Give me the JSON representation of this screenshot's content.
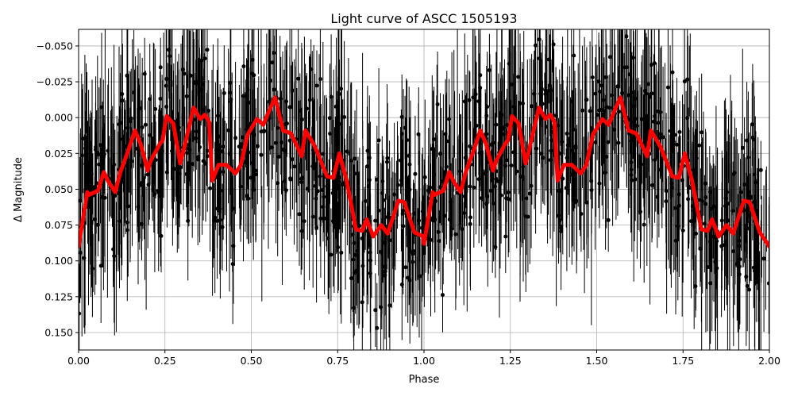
{
  "chart_data": {
    "type": "line",
    "title": "Light curve of ASCC 1505193",
    "xlabel": "Phase",
    "ylabel": "Δ Magnitude",
    "xlim": [
      0.0,
      2.0
    ],
    "ylim": [
      -0.0616,
      0.1622
    ],
    "y_inverted": true,
    "grid": true,
    "xticks": [
      "0.00",
      "0.25",
      "0.50",
      "0.75",
      "1.00",
      "1.25",
      "1.50",
      "1.75",
      "2.00"
    ],
    "yticks": [
      "−0.050",
      "−0.025",
      "0.000",
      "0.025",
      "0.050",
      "0.075",
      "0.100",
      "0.125",
      "0.150"
    ],
    "xtick_values": [
      0,
      0.25,
      0.5,
      0.75,
      1.0,
      1.25,
      1.5,
      1.75,
      2.0
    ],
    "ytick_values": [
      -0.05,
      -0.025,
      0,
      0.025,
      0.05,
      0.075,
      0.1,
      0.125,
      0.15
    ],
    "series": [
      {
        "kind": "errorbar-scatter",
        "color": "#000000",
        "note_visible": "dense black points with vertical error bars scattered around the fitted curve"
      },
      {
        "kind": "line",
        "color": "#ff0000",
        "x": [
          0.0,
          0.025,
          0.029,
          0.056,
          0.073,
          0.087,
          0.106,
          0.121,
          0.144,
          0.163,
          0.179,
          0.2,
          0.209,
          0.236,
          0.243,
          0.255,
          0.274,
          0.294,
          0.301,
          0.333,
          0.352,
          0.366,
          0.378,
          0.387,
          0.405,
          0.428,
          0.454,
          0.47,
          0.489,
          0.516,
          0.535,
          0.55,
          0.569,
          0.592,
          0.615,
          0.646,
          0.657,
          0.684,
          0.719,
          0.738,
          0.755,
          0.776,
          0.803,
          0.821,
          0.834,
          0.853,
          0.876,
          0.895,
          0.926,
          0.943,
          0.972,
          0.998,
          1.0,
          1.025,
          1.029,
          1.056,
          1.073,
          1.087,
          1.106,
          1.121,
          1.144,
          1.163,
          1.179,
          1.2,
          1.209,
          1.236,
          1.243,
          1.255,
          1.274,
          1.294,
          1.301,
          1.333,
          1.352,
          1.366,
          1.378,
          1.387,
          1.405,
          1.428,
          1.454,
          1.47,
          1.489,
          1.516,
          1.535,
          1.55,
          1.569,
          1.592,
          1.615,
          1.646,
          1.657,
          1.684,
          1.719,
          1.738,
          1.755,
          1.776,
          1.803,
          1.821,
          1.834,
          1.853,
          1.876,
          1.895,
          1.926,
          1.943,
          1.972,
          2.0
        ],
        "y": [
          0.09,
          0.052,
          0.054,
          0.051,
          0.038,
          0.045,
          0.052,
          0.038,
          0.023,
          0.009,
          0.018,
          0.037,
          0.03,
          0.018,
          0.016,
          -0.001,
          0.004,
          0.032,
          0.026,
          -0.007,
          0.001,
          -0.002,
          0.003,
          0.044,
          0.033,
          0.033,
          0.039,
          0.033,
          0.012,
          0.001,
          0.005,
          -0.004,
          -0.014,
          0.009,
          0.011,
          0.027,
          0.009,
          0.02,
          0.041,
          0.042,
          0.025,
          0.044,
          0.078,
          0.079,
          0.071,
          0.083,
          0.075,
          0.081,
          0.058,
          0.059,
          0.08,
          0.083,
          0.088,
          0.052,
          0.054,
          0.051,
          0.038,
          0.045,
          0.052,
          0.038,
          0.023,
          0.009,
          0.018,
          0.037,
          0.03,
          0.018,
          0.016,
          -0.001,
          0.004,
          0.032,
          0.026,
          -0.007,
          0.001,
          -0.002,
          0.003,
          0.044,
          0.033,
          0.033,
          0.039,
          0.033,
          0.012,
          0.001,
          0.005,
          -0.004,
          -0.014,
          0.009,
          0.011,
          0.027,
          0.009,
          0.02,
          0.041,
          0.042,
          0.025,
          0.044,
          0.078,
          0.079,
          0.071,
          0.083,
          0.075,
          0.081,
          0.058,
          0.059,
          0.08,
          0.09
        ]
      }
    ]
  }
}
